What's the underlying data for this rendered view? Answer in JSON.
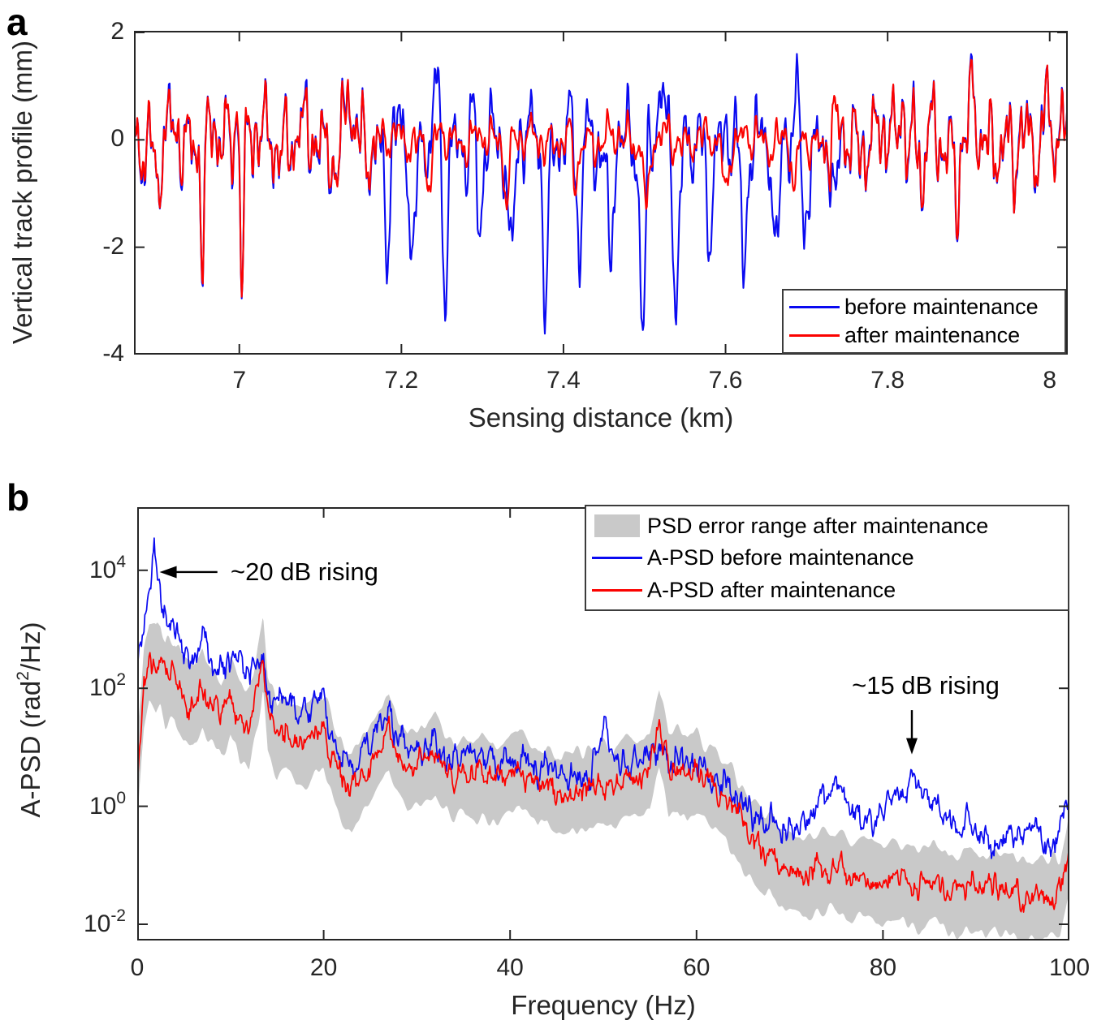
{
  "figure": {
    "background": "#ffffff",
    "panel_labels": [
      "a",
      "b"
    ],
    "axis_color": "#262626"
  },
  "chart_data": [
    {
      "id": "a",
      "type": "line",
      "title": "",
      "xlabel": "Sensing distance (km)",
      "ylabel": "Vertical track profile (mm)",
      "xlim": [
        6.87,
        8.0223
      ],
      "ylim": [
        -4,
        2.03
      ],
      "xticks": [
        7,
        7.2,
        7.4,
        7.6,
        7.8,
        8
      ],
      "yticks": [
        2,
        0,
        -2,
        -4
      ],
      "grid": false,
      "legend_position": "bottom-right",
      "legend_entries": [
        {
          "label": "before maintenance",
          "color": "#0a0af0",
          "type": "line"
        },
        {
          "label": "after maintenance",
          "color": "#fb0200",
          "type": "line"
        }
      ],
      "series_model": {
        "sample_step_km": 0.001,
        "seed": 7,
        "jitter_mm": 0.09,
        "base_components": [
          {
            "wavelength_km": 0.0235,
            "amplitude_mm": 0.42
          },
          {
            "wavelength_km": 0.0121,
            "amplitude_mm": 0.3
          },
          {
            "wavelength_km": 0.0063,
            "amplitude_mm": 0.22
          },
          {
            "wavelength_km": 0.0036,
            "amplitude_mm": 0.12
          },
          {
            "wavelength_km": 0.055,
            "amplitude_mm": 0.2
          },
          {
            "wavelength_km": 0.0088,
            "amplitude_mm": 0.16
          }
        ],
        "divergent_region_km": [
          7.165,
          7.723
        ],
        "shared_features": {
          "peaks": [
            [
              6.999,
              1.5
            ],
            [
              7.135,
              1.1
            ],
            [
              7.818,
              1.2
            ],
            [
              7.905,
              0.8
            ],
            [
              7.995,
              1.2
            ]
          ],
          "dips": [
            [
              6.9,
              -1.0
            ],
            [
              6.955,
              -2.0
            ],
            [
              7.003,
              -2.9
            ],
            [
              7.12,
              -0.9
            ],
            [
              7.843,
              -1.1
            ],
            [
              7.885,
              -1.2
            ],
            [
              7.955,
              -1.0
            ]
          ]
        },
        "before_mid_dips": [
          [
            7.182,
            -2.1
          ],
          [
            7.214,
            -2.2
          ],
          [
            7.253,
            -2.9
          ],
          [
            7.296,
            -2.3
          ],
          [
            7.336,
            -2.3
          ],
          [
            7.378,
            -2.8
          ],
          [
            7.42,
            -2.5
          ],
          [
            7.458,
            -2.8
          ],
          [
            7.498,
            -3.5
          ],
          [
            7.539,
            -3.0
          ],
          [
            7.579,
            -2.3
          ],
          [
            7.623,
            -3.0
          ],
          [
            7.663,
            -2.2
          ],
          [
            7.697,
            -2.0
          ],
          [
            7.735,
            -1.6
          ]
        ],
        "before_mid_peaks": [
          [
            7.245,
            1.2
          ],
          [
            7.29,
            0.8
          ],
          [
            7.425,
            0.9
          ],
          [
            7.52,
            0.8
          ],
          [
            7.61,
            0.6
          ],
          [
            7.69,
            0.8
          ]
        ],
        "after_mid": {
          "attenuation": 0.5,
          "clip_mm": [
            -0.72,
            0.85
          ],
          "dips": [
            [
              7.235,
              -0.9
            ],
            [
              7.33,
              -1.0
            ],
            [
              7.415,
              -0.95
            ],
            [
              7.503,
              -1.4
            ],
            [
              7.6,
              -1.0
            ],
            [
              7.685,
              -1.1
            ]
          ]
        }
      }
    },
    {
      "id": "b",
      "type": "line",
      "title": "",
      "xlabel": "Frequency (Hz)",
      "ylabel": "A-PSD (rad²/Hz)",
      "ylabel_parts": {
        "prefix": "A-PSD (rad",
        "sup": "2",
        "suffix": "/Hz)"
      },
      "xlim": [
        0,
        100
      ],
      "ylim_log10": [
        -2.275,
        5.07
      ],
      "xticks": [
        0,
        20,
        40,
        60,
        80,
        100
      ],
      "ytick_exponents": [
        4,
        2,
        0,
        -2
      ],
      "grid": false,
      "legend_position": "top-right",
      "legend_entries": [
        {
          "label": "PSD error range after maintenance",
          "color": "#c9c9c9",
          "type": "patch"
        },
        {
          "label": "A-PSD before maintenance",
          "color": "#0a0af0",
          "type": "line"
        },
        {
          "label": "A-PSD after maintenance",
          "color": "#fb0200",
          "type": "line"
        }
      ],
      "annotations": [
        {
          "text": "~20 dB rising",
          "arrow": "left",
          "text_anchor": {
            "f": 10.2,
            "log10": 3.97
          },
          "arrow_from": {
            "f": 8.6,
            "log10": 3.97
          },
          "arrow_to": {
            "f": 2.4,
            "log10": 3.97
          }
        },
        {
          "text": "~15 dB rising",
          "arrow": "down",
          "text_anchor": {
            "f": 84.6,
            "log10": 2.05
          },
          "arrow_from": {
            "f": 83.1,
            "log10": 1.63
          },
          "arrow_to": {
            "f": 83.1,
            "log10": 0.88
          }
        }
      ],
      "trend_log10_anchors": {
        "before": [
          [
            0,
            2.4
          ],
          [
            0.8,
            3.1
          ],
          [
            1.4,
            3.8
          ],
          [
            1.8,
            4.62
          ],
          [
            2.2,
            3.7
          ],
          [
            2.8,
            3.35
          ],
          [
            3.5,
            2.95
          ],
          [
            4.2,
            3.1
          ],
          [
            5,
            2.65
          ],
          [
            6,
            2.45
          ],
          [
            7,
            2.9
          ],
          [
            8,
            2.45
          ],
          [
            9,
            2.25
          ],
          [
            10,
            2.4
          ],
          [
            11,
            2.65
          ],
          [
            12,
            2.15
          ],
          [
            13,
            2.55
          ],
          [
            14,
            1.95
          ],
          [
            15,
            1.8
          ],
          [
            16,
            1.95
          ],
          [
            17,
            1.65
          ],
          [
            18,
            1.6
          ],
          [
            19,
            1.75
          ],
          [
            20,
            1.8
          ],
          [
            21,
            1.15
          ],
          [
            22,
            0.85
          ],
          [
            23,
            0.65
          ],
          [
            24,
            0.95
          ],
          [
            25,
            1.05
          ],
          [
            26,
            1.35
          ],
          [
            27,
            1.65
          ],
          [
            28,
            1.15
          ],
          [
            29,
            0.95
          ],
          [
            30,
            1.1
          ],
          [
            31,
            0.95
          ],
          [
            32,
            1.15
          ],
          [
            33,
            0.9
          ],
          [
            34,
            1.0
          ],
          [
            35,
            0.85
          ],
          [
            36,
            0.95
          ],
          [
            37,
            0.8
          ],
          [
            38,
            0.9
          ],
          [
            39,
            0.75
          ],
          [
            40,
            0.85
          ],
          [
            41,
            0.95
          ],
          [
            42,
            0.7
          ],
          [
            43,
            0.6
          ],
          [
            44,
            0.75
          ],
          [
            45,
            0.55
          ],
          [
            46,
            0.5
          ],
          [
            47,
            0.6
          ],
          [
            48,
            0.55
          ],
          [
            49,
            0.7
          ],
          [
            50,
            1.5
          ],
          [
            51,
            0.85
          ],
          [
            52,
            0.75
          ],
          [
            53,
            0.8
          ],
          [
            54,
            0.9
          ],
          [
            55,
            0.85
          ],
          [
            56,
            0.95
          ],
          [
            57,
            0.8
          ],
          [
            58,
            0.9
          ],
          [
            59,
            0.75
          ],
          [
            60,
            0.7
          ],
          [
            61,
            0.55
          ],
          [
            62,
            0.45
          ],
          [
            63,
            0.3
          ],
          [
            64,
            0.15
          ],
          [
            65,
            0.05
          ],
          [
            66,
            -0.1
          ],
          [
            67,
            -0.25
          ],
          [
            68,
            -0.3
          ],
          [
            69,
            -0.4
          ],
          [
            70,
            -0.45
          ],
          [
            71,
            -0.2
          ],
          [
            72,
            -0.1
          ],
          [
            73,
            0.0
          ],
          [
            74,
            0.2
          ],
          [
            75,
            0.55
          ],
          [
            76,
            0.1
          ],
          [
            77,
            -0.2
          ],
          [
            78,
            -0.35
          ],
          [
            79,
            -0.25
          ],
          [
            80,
            -0.1
          ],
          [
            81,
            0.0
          ],
          [
            82,
            0.2
          ],
          [
            83,
            0.35
          ],
          [
            84,
            0.3
          ],
          [
            85,
            0.15
          ],
          [
            86,
            -0.05
          ],
          [
            87,
            -0.2
          ],
          [
            88,
            -0.35
          ],
          [
            89,
            -0.3
          ],
          [
            90,
            -0.45
          ],
          [
            91,
            -0.55
          ],
          [
            92,
            -0.5
          ],
          [
            93,
            -0.6
          ],
          [
            94,
            -0.45
          ],
          [
            95,
            -0.65
          ],
          [
            96,
            -0.35
          ],
          [
            97,
            -0.55
          ],
          [
            98,
            -0.6
          ],
          [
            99,
            -0.35
          ],
          [
            100,
            0.1
          ]
        ],
        "after": [
          [
            0,
            0.5
          ],
          [
            0.7,
            2.0
          ],
          [
            1.3,
            2.45
          ],
          [
            2,
            2.3
          ],
          [
            2.5,
            2.5
          ],
          [
            3,
            2.1
          ],
          [
            4,
            2.2
          ],
          [
            5,
            1.8
          ],
          [
            6,
            1.7
          ],
          [
            7,
            2.0
          ],
          [
            8,
            1.7
          ],
          [
            9,
            1.5
          ],
          [
            10,
            1.9
          ],
          [
            11,
            1.5
          ],
          [
            12,
            1.4
          ],
          [
            13,
            2.1
          ],
          [
            13.5,
            2.6
          ],
          [
            14,
            1.6
          ],
          [
            15,
            1.2
          ],
          [
            16,
            1.3
          ],
          [
            17,
            1.1
          ],
          [
            18,
            1.15
          ],
          [
            19,
            1.25
          ],
          [
            20,
            1.3
          ],
          [
            21,
            0.8
          ],
          [
            22,
            0.45
          ],
          [
            23,
            0.3
          ],
          [
            24,
            0.55
          ],
          [
            25,
            0.75
          ],
          [
            26,
            1.0
          ],
          [
            27,
            1.35
          ],
          [
            28,
            0.9
          ],
          [
            29,
            0.6
          ],
          [
            30,
            0.7
          ],
          [
            31,
            0.8
          ],
          [
            32,
            0.9
          ],
          [
            33,
            0.6
          ],
          [
            34,
            0.5
          ],
          [
            35,
            0.6
          ],
          [
            36,
            0.45
          ],
          [
            37,
            0.55
          ],
          [
            38,
            0.4
          ],
          [
            39,
            0.5
          ],
          [
            40,
            0.6
          ],
          [
            41,
            0.7
          ],
          [
            42,
            0.45
          ],
          [
            43,
            0.3
          ],
          [
            44,
            0.4
          ],
          [
            45,
            0.25
          ],
          [
            46,
            0.2
          ],
          [
            47,
            0.3
          ],
          [
            48,
            0.25
          ],
          [
            49,
            0.35
          ],
          [
            50,
            0.45
          ],
          [
            51,
            0.3
          ],
          [
            52,
            0.45
          ],
          [
            53,
            0.55
          ],
          [
            54,
            0.5
          ],
          [
            55,
            0.65
          ],
          [
            56,
            1.35
          ],
          [
            57,
            0.6
          ],
          [
            58,
            0.7
          ],
          [
            59,
            0.55
          ],
          [
            60,
            0.6
          ],
          [
            61,
            0.4
          ],
          [
            62,
            0.3
          ],
          [
            63,
            0.1
          ],
          [
            64,
            -0.1
          ],
          [
            65,
            -0.35
          ],
          [
            66,
            -0.55
          ],
          [
            67,
            -0.7
          ],
          [
            68,
            -0.85
          ],
          [
            69,
            -1.0
          ],
          [
            70,
            -1.05
          ],
          [
            71,
            -1.15
          ],
          [
            72,
            -1.2
          ],
          [
            73,
            -1.1
          ],
          [
            74,
            -1.15
          ],
          [
            75,
            -1.05
          ],
          [
            76,
            -1.2
          ],
          [
            77,
            -1.25
          ],
          [
            78,
            -1.15
          ],
          [
            79,
            -1.25
          ],
          [
            80,
            -1.3
          ],
          [
            81,
            -1.2
          ],
          [
            82,
            -1.25
          ],
          [
            83,
            -1.3
          ],
          [
            84,
            -1.35
          ],
          [
            85,
            -1.25
          ],
          [
            86,
            -1.3
          ],
          [
            87,
            -1.4
          ],
          [
            88,
            -1.45
          ],
          [
            89,
            -1.35
          ],
          [
            90,
            -1.4
          ],
          [
            91,
            -1.45
          ],
          [
            92,
            -1.4
          ],
          [
            93,
            -1.5
          ],
          [
            94,
            -1.45
          ],
          [
            95,
            -1.55
          ],
          [
            96,
            -1.5
          ],
          [
            97,
            -1.55
          ],
          [
            98,
            -1.5
          ],
          [
            99,
            -1.45
          ],
          [
            100,
            -0.8
          ]
        ]
      },
      "noise_model": {
        "before_amp_log10": 0.36,
        "after_amp_log10": 0.3,
        "before_jag_log10": 0.1,
        "after_jag_log10": 0.09,
        "seed_before": 11,
        "seed_after": 23
      },
      "error_band": {
        "half_width_log10": 0.62,
        "edge_wobble_log10": 0.18,
        "color": "#c9c9c9",
        "seed": 31
      }
    }
  ]
}
